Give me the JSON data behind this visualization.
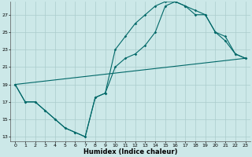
{
  "xlabel": "Humidex (Indice chaleur)",
  "bg_color": "#cce8e8",
  "line_color": "#006868",
  "grid_color": "#aacccc",
  "xlim": [
    -0.5,
    23.5
  ],
  "ylim": [
    12.5,
    28.5
  ],
  "xticks": [
    0,
    1,
    2,
    3,
    4,
    5,
    6,
    7,
    8,
    9,
    10,
    11,
    12,
    13,
    14,
    15,
    16,
    17,
    18,
    19,
    20,
    21,
    22,
    23
  ],
  "yticks": [
    13,
    15,
    17,
    19,
    21,
    23,
    25,
    27
  ],
  "line1_x": [
    0,
    1,
    2,
    3,
    4,
    5,
    6,
    7,
    8,
    9,
    10,
    11,
    12,
    13,
    14,
    15,
    16,
    17,
    18,
    19,
    20,
    21,
    22,
    23
  ],
  "line1_y": [
    19,
    17,
    17,
    16,
    15,
    14,
    13.5,
    13,
    17.5,
    18,
    23,
    24.5,
    26,
    27,
    28,
    28.5,
    28.5,
    28,
    27,
    27,
    25,
    24.5,
    22.5,
    22
  ],
  "line2_x": [
    0,
    1,
    2,
    3,
    4,
    5,
    6,
    7,
    8,
    9,
    10,
    11,
    12,
    13,
    14,
    15,
    16,
    17,
    18,
    19,
    20,
    21,
    22,
    23
  ],
  "line2_y": [
    19,
    17,
    17,
    16,
    15,
    14,
    13.5,
    13,
    17.5,
    18,
    21,
    22,
    22.5,
    23.5,
    25,
    28,
    28.5,
    28,
    27.5,
    27,
    25,
    24,
    22.5,
    22
  ],
  "line3_x": [
    0,
    23
  ],
  "line3_y": [
    19,
    22
  ],
  "xlabel_fontsize": 6,
  "tick_fontsize": 4.5,
  "linewidth": 0.8,
  "markersize": 1.8
}
